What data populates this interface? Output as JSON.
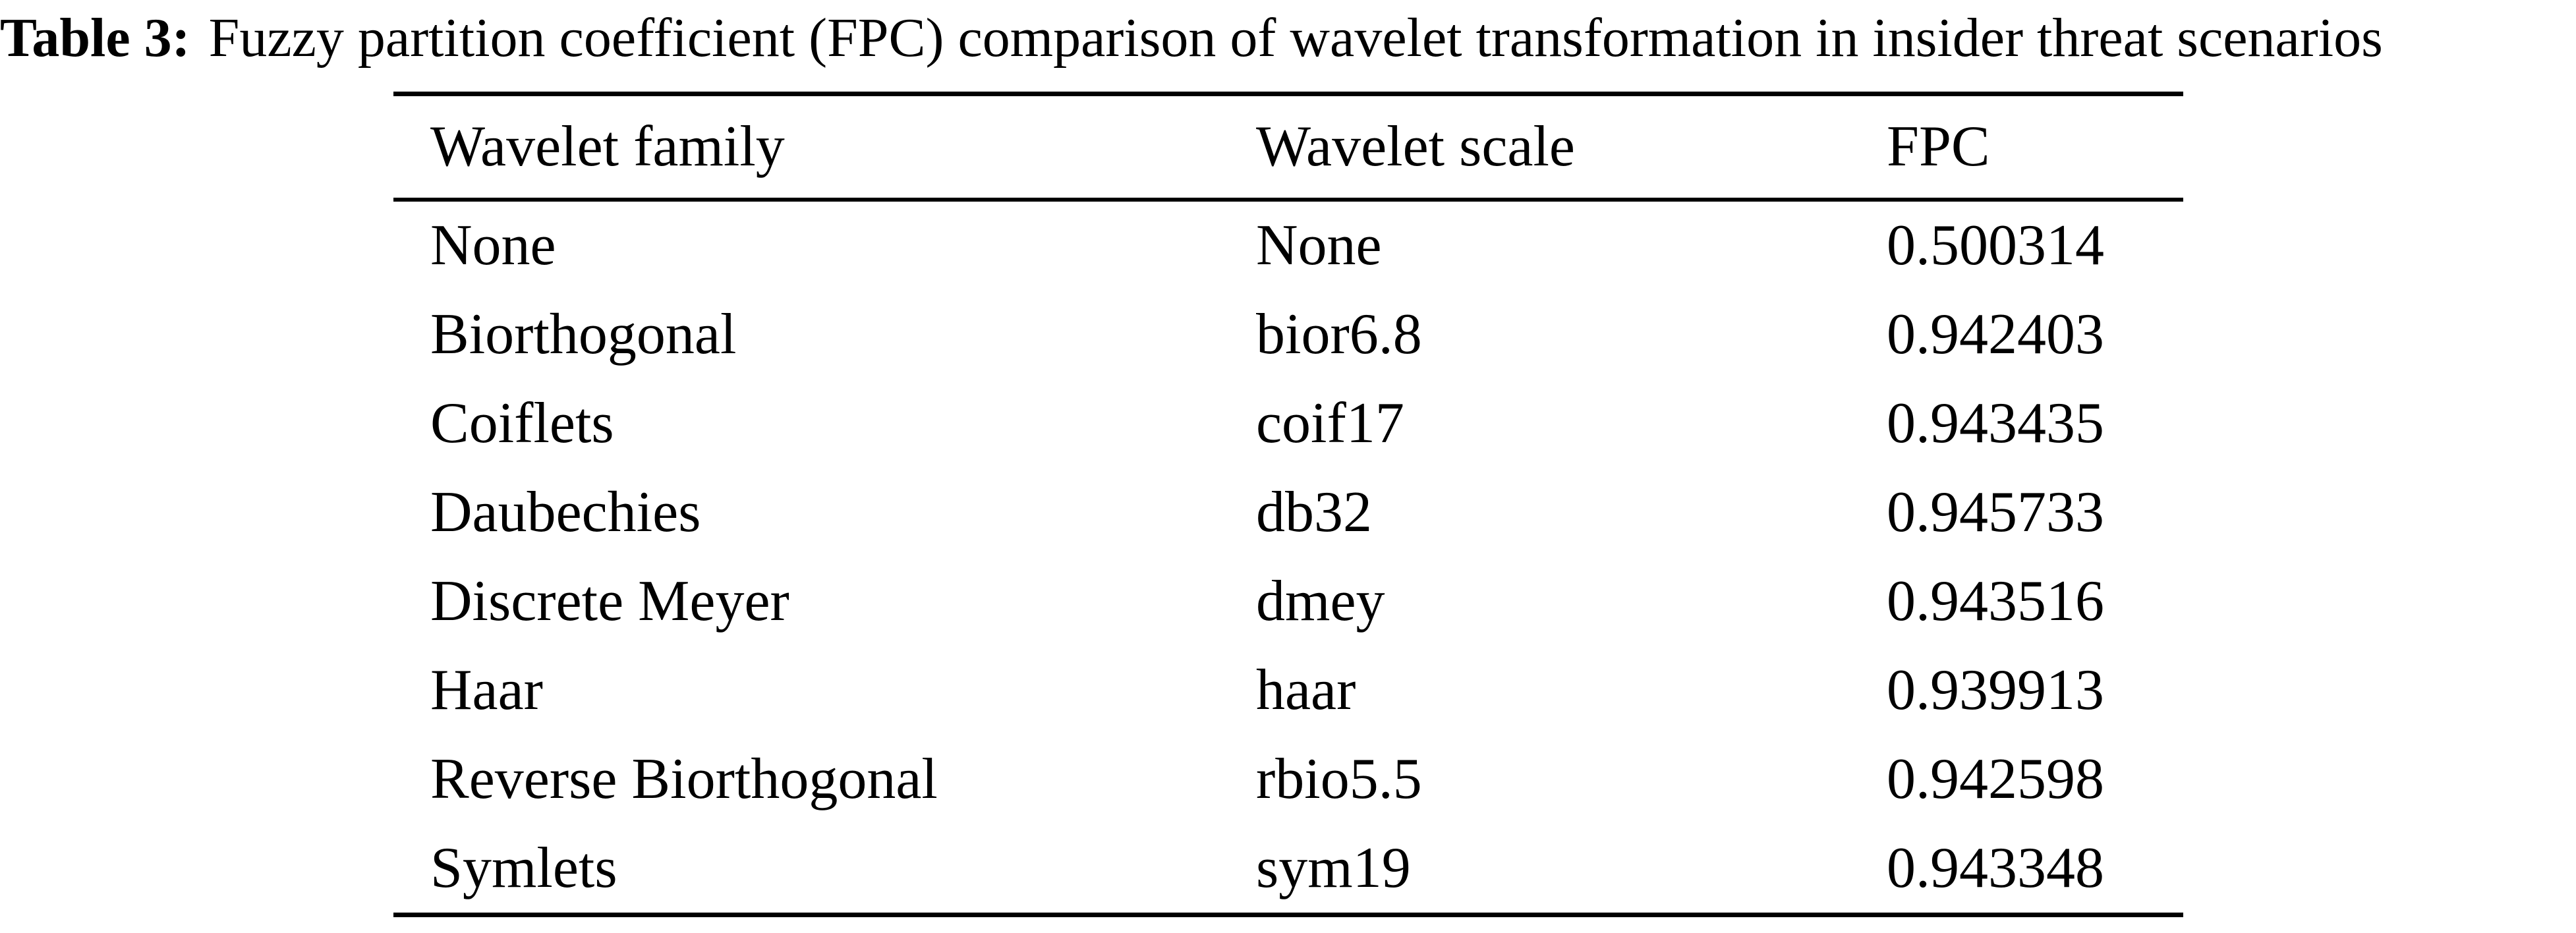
{
  "caption": {
    "label": "Table 3:",
    "text": "Fuzzy partition coefficient (FPC) comparison of wavelet transformation in insider threat scenarios"
  },
  "table": {
    "columns": [
      "Wavelet family",
      "Wavelet scale",
      "FPC"
    ],
    "rows": [
      [
        "None",
        "None",
        "0.500314"
      ],
      [
        "Biorthogonal",
        "bior6.8",
        "0.942403"
      ],
      [
        "Coiflets",
        "coif17",
        "0.943435"
      ],
      [
        "Daubechies",
        "db32",
        "0.945733"
      ],
      [
        "Discrete Meyer",
        "dmey",
        "0.943516"
      ],
      [
        "Haar",
        "haar",
        "0.939913"
      ],
      [
        "Reverse Biorthogonal",
        "rbio5.5",
        "0.942598"
      ],
      [
        "Symlets",
        "sym19",
        "0.943348"
      ]
    ]
  },
  "chart_data": {
    "type": "table",
    "title": "Table 3: Fuzzy partition coefficient (FPC) comparison of wavelet transformation in insider threat scenarios",
    "columns": [
      "Wavelet family",
      "Wavelet scale",
      "FPC"
    ],
    "categories": [
      "None",
      "Biorthogonal",
      "Coiflets",
      "Daubechies",
      "Discrete Meyer",
      "Haar",
      "Reverse Biorthogonal",
      "Symlets"
    ],
    "scales": [
      "None",
      "bior6.8",
      "coif17",
      "db32",
      "dmey",
      "haar",
      "rbio5.5",
      "sym19"
    ],
    "values": [
      0.500314,
      0.942403,
      0.943435,
      0.945733,
      0.943516,
      0.939913,
      0.942598,
      0.943348
    ]
  },
  "colors": {
    "background": "#ffffff",
    "text": "#000000",
    "rule": "#000000"
  }
}
